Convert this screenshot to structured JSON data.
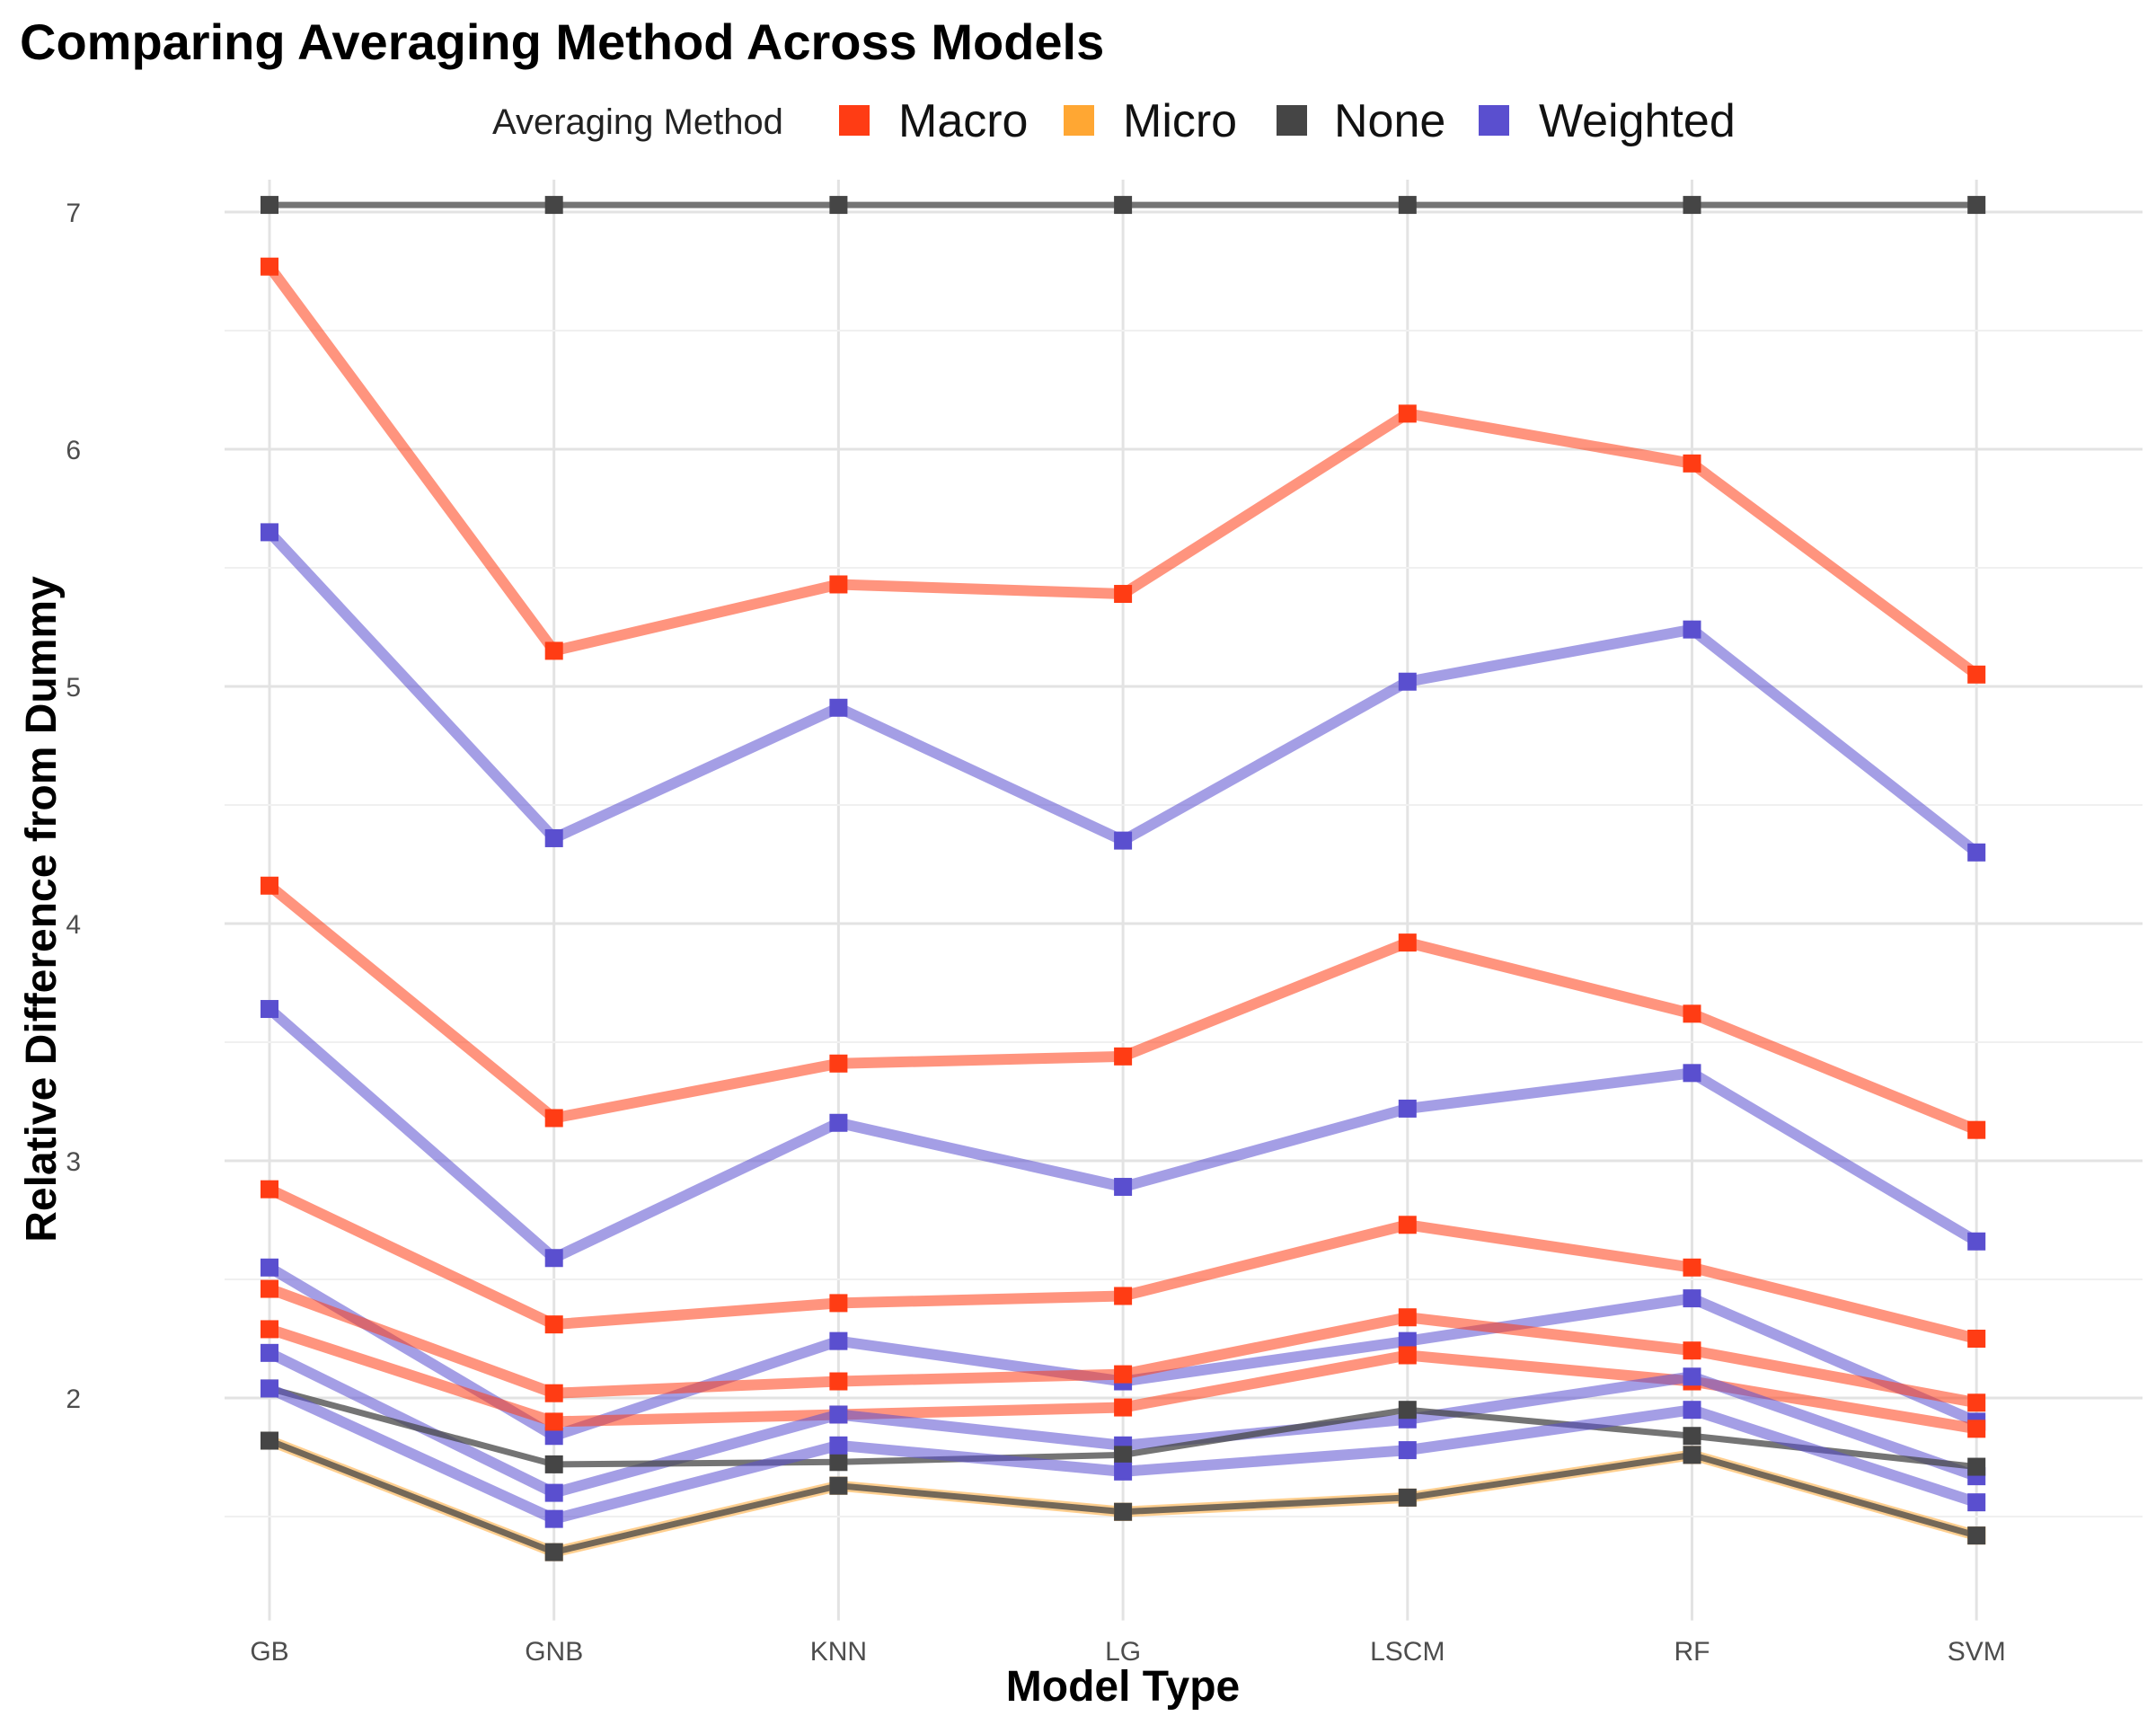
{
  "chart_data": {
    "type": "line",
    "title": "Comparing Averaging Method Across Models",
    "xlabel": "Model Type",
    "ylabel": "Relative Difference from Dummy",
    "categories": [
      "GB",
      "GNB",
      "KNN",
      "LG",
      "LSCM",
      "RF",
      "SVM"
    ],
    "ylim": [
      1.1,
      7.0
    ],
    "yticks": [
      2,
      3,
      4,
      5,
      6,
      7
    ],
    "grid": true,
    "legend": {
      "title": "Averaging Method",
      "placement": "top",
      "entries": [
        {
          "label": "Macro",
          "color": "#FF3C14"
        },
        {
          "label": "Micro",
          "color": "#FFA733"
        },
        {
          "label": "None",
          "color": "#454545"
        },
        {
          "label": "Weighted",
          "color": "#5A4FCF"
        }
      ]
    },
    "series": [
      {
        "method": "None",
        "values": [
          7.03,
          7.03,
          7.03,
          7.03,
          7.03,
          7.03,
          7.03
        ]
      },
      {
        "method": "Macro",
        "values": [
          6.77,
          5.15,
          5.43,
          5.39,
          6.15,
          5.94,
          5.05
        ]
      },
      {
        "method": "Weighted",
        "values": [
          5.65,
          4.36,
          4.91,
          4.35,
          5.02,
          5.24,
          4.3
        ]
      },
      {
        "method": "Macro",
        "values": [
          4.16,
          3.18,
          3.41,
          3.44,
          3.92,
          3.62,
          3.13
        ]
      },
      {
        "method": "Weighted",
        "values": [
          3.64,
          2.59,
          3.16,
          2.89,
          3.22,
          3.37,
          2.66
        ]
      },
      {
        "method": "Macro",
        "values": [
          2.88,
          2.31,
          2.4,
          2.43,
          2.73,
          2.55,
          2.25
        ]
      },
      {
        "method": "Weighted",
        "values": [
          2.55,
          1.84,
          2.24,
          2.07,
          2.24,
          2.42,
          1.9
        ]
      },
      {
        "method": "Macro",
        "values": [
          2.46,
          2.02,
          2.07,
          2.1,
          2.34,
          2.2,
          1.98
        ]
      },
      {
        "method": "Macro",
        "values": [
          2.29,
          1.9,
          1.93,
          1.96,
          2.18,
          2.07,
          1.87
        ]
      },
      {
        "method": "Weighted",
        "values": [
          2.19,
          1.6,
          1.93,
          1.8,
          1.91,
          2.09,
          1.67
        ]
      },
      {
        "method": "None",
        "values": [
          2.04,
          1.72,
          1.73,
          1.76,
          1.95,
          1.84,
          1.71
        ]
      },
      {
        "method": "Weighted",
        "values": [
          2.04,
          1.49,
          1.8,
          1.69,
          1.78,
          1.95,
          1.56
        ]
      },
      {
        "method": "Micro",
        "values": [
          1.82,
          1.35,
          1.63,
          1.52,
          1.58,
          1.76,
          1.42
        ]
      },
      {
        "method": "None",
        "values": [
          1.82,
          1.35,
          1.63,
          1.52,
          1.58,
          1.76,
          1.42
        ]
      }
    ]
  }
}
